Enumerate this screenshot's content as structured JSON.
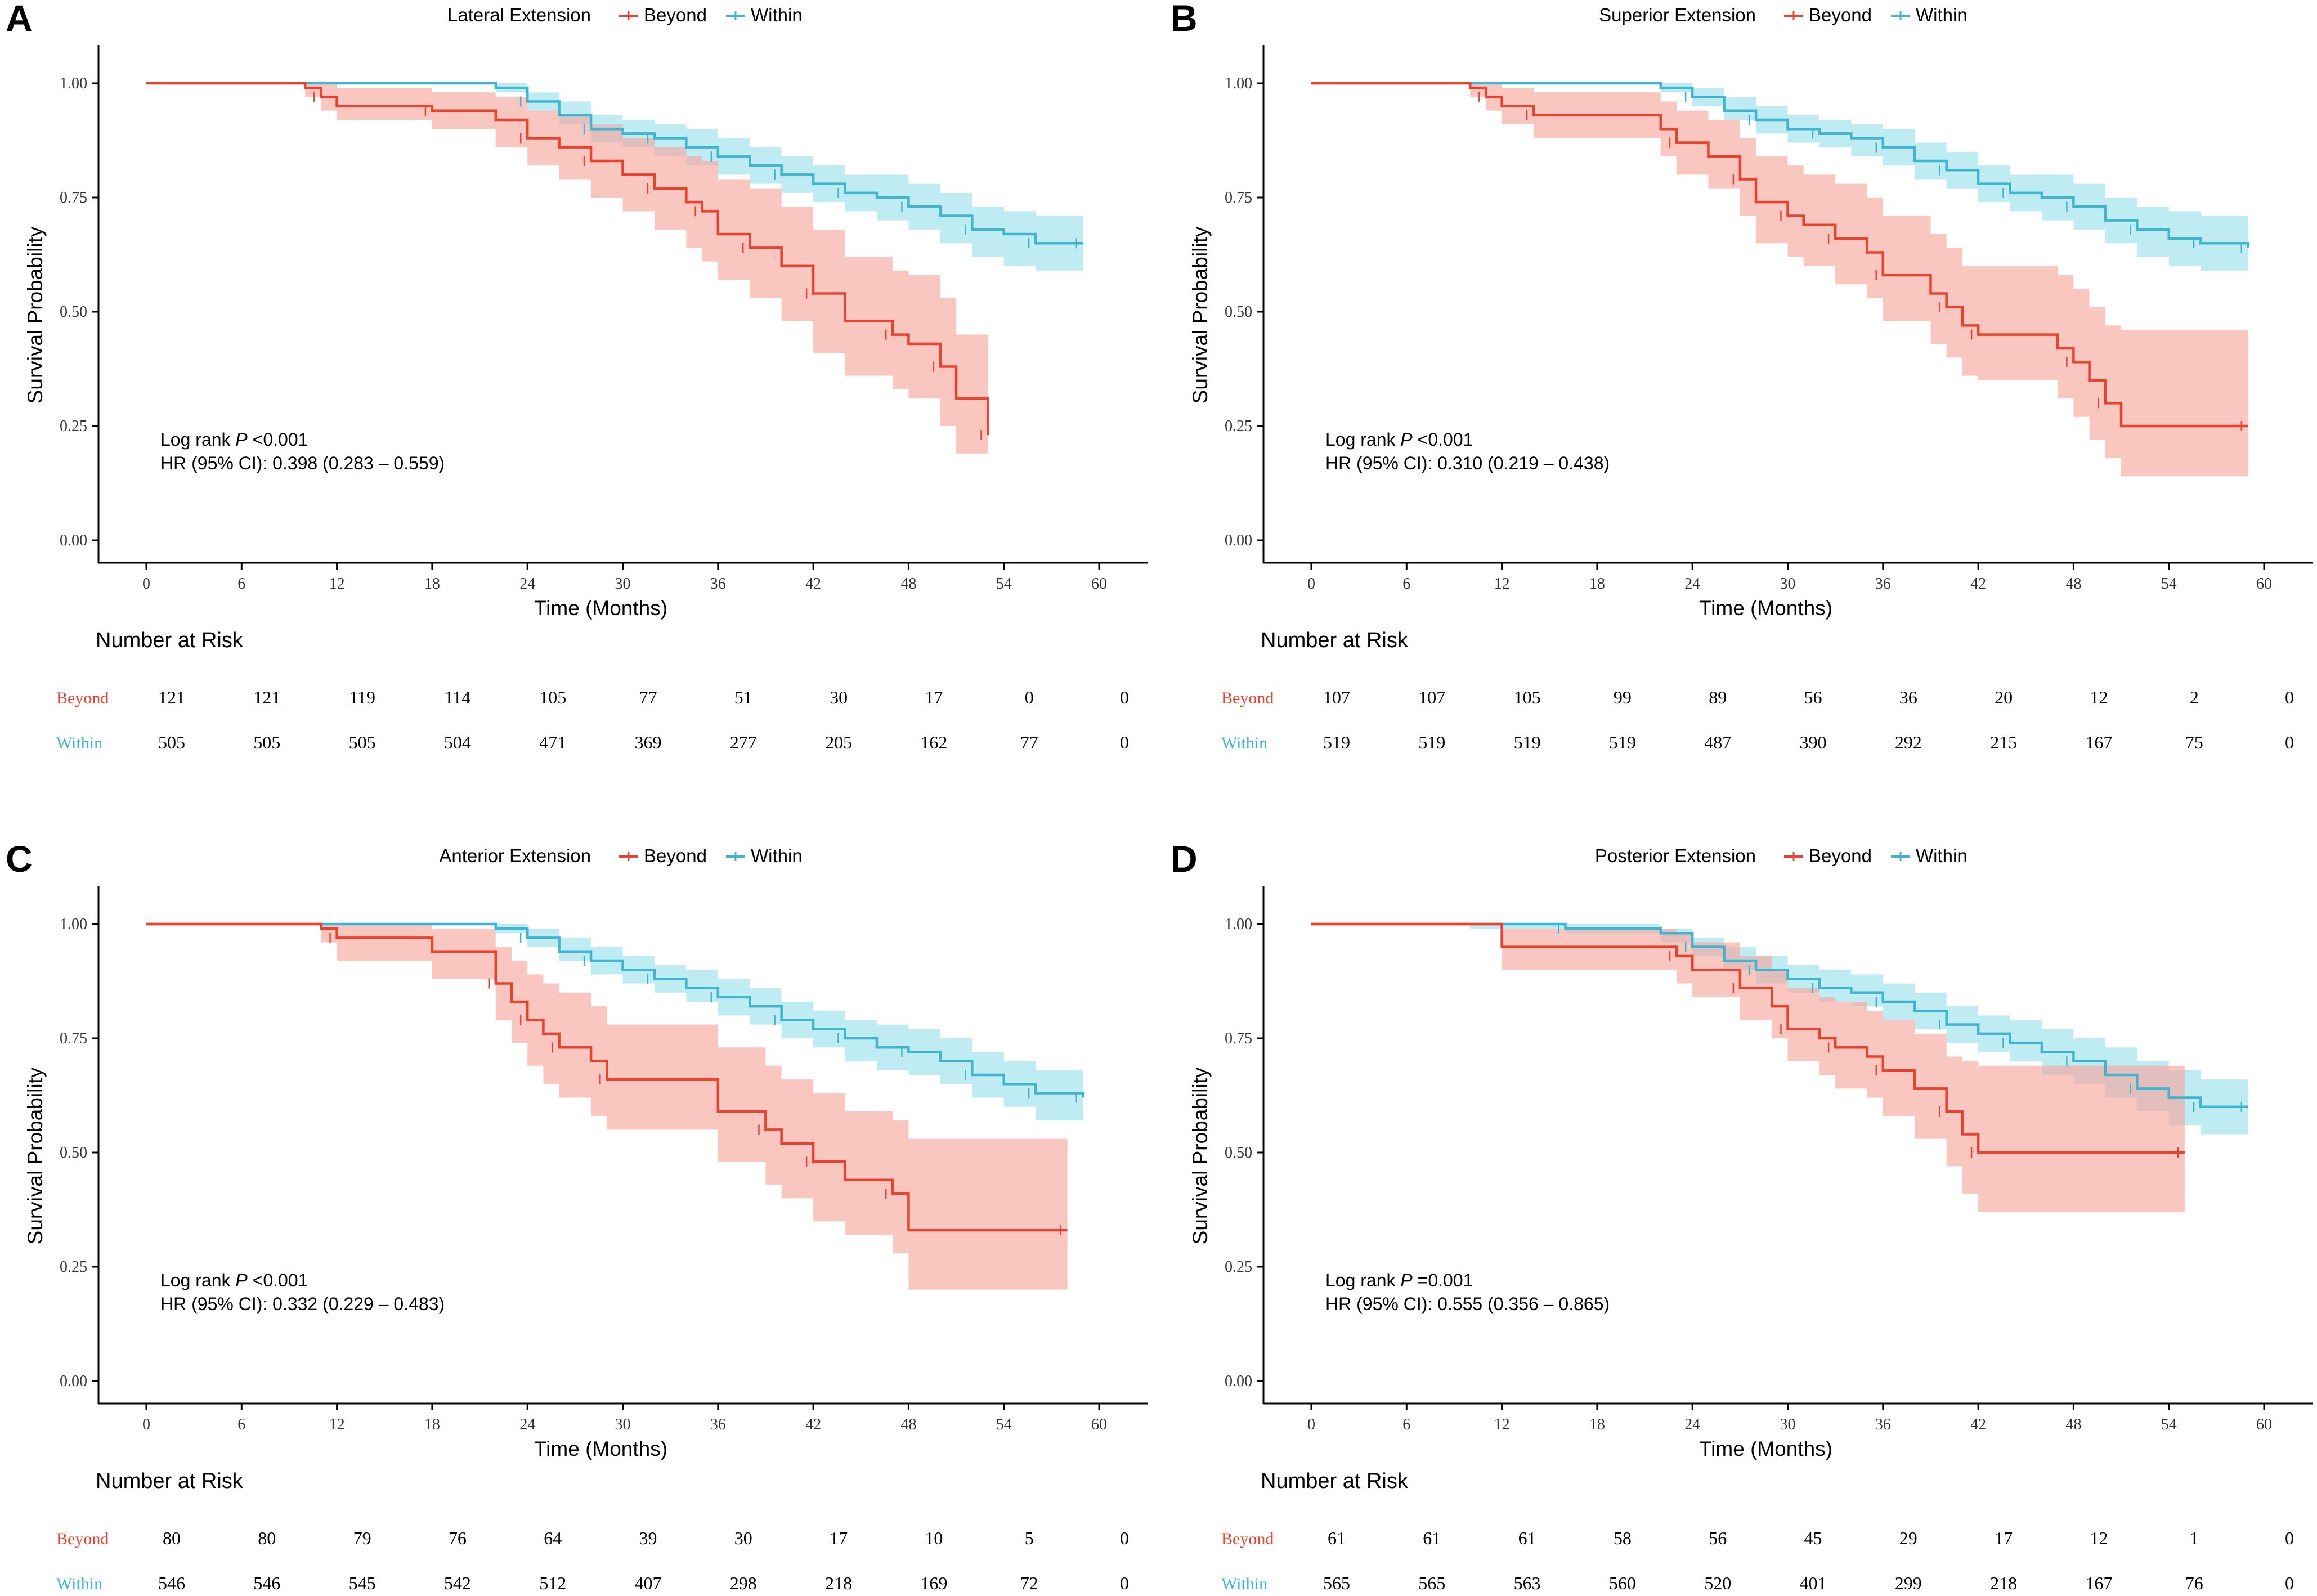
{
  "figure": {
    "colors": {
      "beyond": "#e8432f",
      "within": "#3fb5cf",
      "beyond_band": "#f7a39a",
      "within_band": "#a6e3ef",
      "axis": "#000000"
    }
  },
  "chart_data": [
    {
      "panel_label": "A",
      "type": "line",
      "subtype": "kaplan-meier",
      "title": "Lateral Extension",
      "legend": [
        "Beyond",
        "Within"
      ],
      "xlabel": "Time (Months)",
      "ylabel": "Survival Probability",
      "xlim": [
        0,
        60
      ],
      "ylim": [
        0,
        1
      ],
      "xticks": [
        "0",
        "6",
        "12",
        "18",
        "24",
        "30",
        "36",
        "42",
        "48",
        "54",
        "60"
      ],
      "yticks": [
        "0.00",
        "0.25",
        "0.50",
        "0.75",
        "1.00"
      ],
      "annotation": {
        "line1_pre": "Log rank ",
        "line1_p": "P",
        "line1_post": " <0.001",
        "line2": "HR (95% CI): 0.398 (0.283 – 0.559)"
      },
      "series": [
        {
          "name": "Beyond",
          "x": [
            0,
            10,
            11,
            12,
            18,
            22,
            24,
            26,
            28,
            30,
            32,
            34,
            35,
            36,
            38,
            40,
            42,
            44,
            47,
            48,
            50,
            51,
            53
          ],
          "y": [
            1.0,
            0.99,
            0.97,
            0.95,
            0.94,
            0.92,
            0.88,
            0.86,
            0.83,
            0.8,
            0.77,
            0.74,
            0.72,
            0.67,
            0.64,
            0.6,
            0.54,
            0.48,
            0.45,
            0.43,
            0.38,
            0.31,
            0.23
          ],
          "lower": [
            1.0,
            0.97,
            0.94,
            0.92,
            0.9,
            0.86,
            0.82,
            0.79,
            0.75,
            0.72,
            0.68,
            0.64,
            0.61,
            0.57,
            0.53,
            0.48,
            0.41,
            0.36,
            0.33,
            0.31,
            0.25,
            0.19,
            0.19
          ],
          "upper": [
            1.0,
            1.0,
            1.0,
            0.99,
            0.98,
            0.97,
            0.94,
            0.93,
            0.91,
            0.88,
            0.86,
            0.84,
            0.83,
            0.79,
            0.77,
            0.73,
            0.68,
            0.62,
            0.59,
            0.58,
            0.53,
            0.45,
            0.31
          ]
        },
        {
          "name": "Within",
          "x": [
            0,
            22,
            24,
            26,
            28,
            30,
            32,
            34,
            36,
            38,
            40,
            42,
            44,
            46,
            48,
            50,
            52,
            54,
            56,
            59
          ],
          "y": [
            1.0,
            0.99,
            0.96,
            0.93,
            0.9,
            0.89,
            0.88,
            0.86,
            0.84,
            0.82,
            0.8,
            0.78,
            0.76,
            0.75,
            0.73,
            0.71,
            0.68,
            0.67,
            0.65,
            0.65
          ],
          "lower": [
            1.0,
            0.98,
            0.94,
            0.91,
            0.87,
            0.86,
            0.84,
            0.82,
            0.8,
            0.78,
            0.76,
            0.74,
            0.72,
            0.7,
            0.68,
            0.65,
            0.62,
            0.6,
            0.59,
            0.59
          ],
          "upper": [
            1.0,
            1.0,
            0.98,
            0.96,
            0.93,
            0.92,
            0.91,
            0.9,
            0.88,
            0.86,
            0.84,
            0.82,
            0.8,
            0.8,
            0.78,
            0.76,
            0.73,
            0.72,
            0.71,
            0.71
          ]
        }
      ],
      "risk_table": {
        "title": "Number at Risk",
        "rows": [
          {
            "name": "Beyond",
            "values": [
              "121",
              "121",
              "119",
              "114",
              "105",
              "77",
              "51",
              "30",
              "17",
              "0",
              "0"
            ]
          },
          {
            "name": "Within",
            "values": [
              "505",
              "505",
              "505",
              "504",
              "471",
              "369",
              "277",
              "205",
              "162",
              "77",
              "0"
            ]
          }
        ]
      }
    },
    {
      "panel_label": "B",
      "type": "line",
      "subtype": "kaplan-meier",
      "title": "Superior Extension",
      "legend": [
        "Beyond",
        "Within"
      ],
      "xlabel": "Time (Months)",
      "ylabel": "Survival Probability",
      "xlim": [
        0,
        60
      ],
      "ylim": [
        0,
        1
      ],
      "xticks": [
        "0",
        "6",
        "12",
        "18",
        "24",
        "30",
        "36",
        "42",
        "48",
        "54",
        "60"
      ],
      "yticks": [
        "0.00",
        "0.25",
        "0.50",
        "0.75",
        "1.00"
      ],
      "annotation": {
        "line1_pre": "Log rank ",
        "line1_p": "P",
        "line1_post": " <0.001",
        "line2": "HR (95% CI): 0.310 (0.219 – 0.438)"
      },
      "series": [
        {
          "name": "Beyond",
          "x": [
            0,
            10,
            11,
            12,
            14,
            22,
            23,
            25,
            27,
            28,
            30,
            31,
            33,
            35,
            36,
            39,
            40,
            41,
            42,
            47,
            48,
            49,
            50,
            51,
            59
          ],
          "y": [
            1.0,
            0.99,
            0.97,
            0.95,
            0.93,
            0.9,
            0.87,
            0.84,
            0.79,
            0.74,
            0.71,
            0.69,
            0.66,
            0.63,
            0.58,
            0.54,
            0.51,
            0.47,
            0.45,
            0.42,
            0.39,
            0.35,
            0.3,
            0.25,
            0.25
          ],
          "lower": [
            1.0,
            0.97,
            0.94,
            0.91,
            0.88,
            0.84,
            0.8,
            0.77,
            0.71,
            0.65,
            0.62,
            0.6,
            0.56,
            0.53,
            0.48,
            0.43,
            0.4,
            0.36,
            0.35,
            0.31,
            0.27,
            0.22,
            0.18,
            0.14,
            0.14
          ],
          "upper": [
            1.0,
            1.0,
            1.0,
            0.99,
            0.98,
            0.96,
            0.94,
            0.92,
            0.88,
            0.84,
            0.82,
            0.8,
            0.78,
            0.75,
            0.71,
            0.67,
            0.64,
            0.6,
            0.6,
            0.58,
            0.55,
            0.51,
            0.47,
            0.46,
            0.46
          ]
        },
        {
          "name": "Within",
          "x": [
            0,
            22,
            24,
            26,
            28,
            30,
            32,
            34,
            36,
            38,
            40,
            42,
            44,
            46,
            48,
            50,
            52,
            54,
            56,
            59
          ],
          "y": [
            1.0,
            0.99,
            0.97,
            0.94,
            0.92,
            0.9,
            0.89,
            0.88,
            0.86,
            0.83,
            0.81,
            0.78,
            0.76,
            0.75,
            0.73,
            0.7,
            0.68,
            0.66,
            0.65,
            0.64
          ],
          "lower": [
            1.0,
            0.98,
            0.95,
            0.92,
            0.89,
            0.87,
            0.86,
            0.84,
            0.82,
            0.79,
            0.77,
            0.74,
            0.72,
            0.7,
            0.68,
            0.65,
            0.62,
            0.6,
            0.59,
            0.58
          ],
          "upper": [
            1.0,
            1.0,
            0.99,
            0.97,
            0.95,
            0.93,
            0.92,
            0.91,
            0.9,
            0.87,
            0.85,
            0.82,
            0.8,
            0.8,
            0.78,
            0.75,
            0.73,
            0.72,
            0.71,
            0.7
          ]
        }
      ],
      "risk_table": {
        "title": "Number at Risk",
        "rows": [
          {
            "name": "Beyond",
            "values": [
              "107",
              "107",
              "105",
              "99",
              "89",
              "56",
              "36",
              "20",
              "12",
              "2",
              "0"
            ]
          },
          {
            "name": "Within",
            "values": [
              "519",
              "519",
              "519",
              "519",
              "487",
              "390",
              "292",
              "215",
              "167",
              "75",
              "0"
            ]
          }
        ]
      }
    },
    {
      "panel_label": "C",
      "type": "line",
      "subtype": "kaplan-meier",
      "title": "Anterior Extension",
      "legend": [
        "Beyond",
        "Within"
      ],
      "xlabel": "Time (Months)",
      "ylabel": "Survival Probability",
      "xlim": [
        0,
        60
      ],
      "ylim": [
        0,
        1
      ],
      "xticks": [
        "0",
        "6",
        "12",
        "18",
        "24",
        "30",
        "36",
        "42",
        "48",
        "54",
        "60"
      ],
      "yticks": [
        "0.00",
        "0.25",
        "0.50",
        "0.75",
        "1.00"
      ],
      "annotation": {
        "line1_pre": "Log rank ",
        "line1_p": "P",
        "line1_post": " <0.001",
        "line2": "HR (95% CI): 0.332 (0.229 – 0.483)"
      },
      "series": [
        {
          "name": "Beyond",
          "x": [
            0,
            11,
            12,
            18,
            22,
            23,
            24,
            25,
            26,
            28,
            29,
            36,
            39,
            40,
            42,
            44,
            47,
            48,
            58
          ],
          "y": [
            1.0,
            0.99,
            0.97,
            0.94,
            0.87,
            0.83,
            0.79,
            0.76,
            0.73,
            0.7,
            0.66,
            0.59,
            0.55,
            0.52,
            0.48,
            0.44,
            0.41,
            0.33,
            0.33
          ],
          "lower": [
            1.0,
            0.96,
            0.92,
            0.88,
            0.79,
            0.74,
            0.69,
            0.65,
            0.62,
            0.58,
            0.55,
            0.48,
            0.43,
            0.4,
            0.35,
            0.32,
            0.28,
            0.2,
            0.2
          ],
          "upper": [
            1.0,
            1.0,
            1.0,
            0.99,
            0.95,
            0.92,
            0.89,
            0.87,
            0.85,
            0.82,
            0.78,
            0.73,
            0.69,
            0.66,
            0.63,
            0.59,
            0.57,
            0.53,
            0.53
          ]
        },
        {
          "name": "Within",
          "x": [
            0,
            22,
            24,
            26,
            28,
            30,
            32,
            34,
            36,
            38,
            40,
            42,
            44,
            46,
            48,
            50,
            52,
            54,
            56,
            59
          ],
          "y": [
            1.0,
            0.99,
            0.97,
            0.94,
            0.92,
            0.9,
            0.88,
            0.86,
            0.84,
            0.82,
            0.79,
            0.77,
            0.75,
            0.73,
            0.72,
            0.7,
            0.67,
            0.65,
            0.63,
            0.62
          ],
          "lower": [
            1.0,
            0.98,
            0.95,
            0.92,
            0.89,
            0.87,
            0.85,
            0.83,
            0.8,
            0.78,
            0.75,
            0.73,
            0.7,
            0.68,
            0.67,
            0.65,
            0.62,
            0.6,
            0.57,
            0.56
          ],
          "upper": [
            1.0,
            1.0,
            0.99,
            0.97,
            0.95,
            0.93,
            0.91,
            0.9,
            0.88,
            0.86,
            0.83,
            0.81,
            0.79,
            0.78,
            0.77,
            0.75,
            0.72,
            0.7,
            0.68,
            0.68
          ]
        }
      ],
      "risk_table": {
        "title": "Number at Risk",
        "rows": [
          {
            "name": "Beyond",
            "values": [
              "80",
              "80",
              "79",
              "76",
              "64",
              "39",
              "30",
              "17",
              "10",
              "5",
              "0"
            ]
          },
          {
            "name": "Within",
            "values": [
              "546",
              "546",
              "545",
              "542",
              "512",
              "407",
              "298",
              "218",
              "169",
              "72",
              "0"
            ]
          }
        ]
      }
    },
    {
      "panel_label": "D",
      "type": "line",
      "subtype": "kaplan-meier",
      "title": "Posterior Extension",
      "legend": [
        "Beyond",
        "Within"
      ],
      "xlabel": "Time (Months)",
      "ylabel": "Survival Probability",
      "xlim": [
        0,
        60
      ],
      "ylim": [
        0,
        1
      ],
      "xticks": [
        "0",
        "6",
        "12",
        "18",
        "24",
        "30",
        "36",
        "42",
        "48",
        "54",
        "60"
      ],
      "yticks": [
        "0.00",
        "0.25",
        "0.50",
        "0.75",
        "1.00"
      ],
      "annotation": {
        "line1_pre": "Log rank ",
        "line1_p": "P",
        "line1_post": " =0.001",
        "line2": "HR (95% CI): 0.555 (0.356 – 0.865)"
      },
      "series": [
        {
          "name": "Beyond",
          "x": [
            0,
            12,
            23,
            24,
            27,
            29,
            30,
            32,
            33,
            35,
            36,
            38,
            40,
            41,
            42,
            55
          ],
          "y": [
            1.0,
            0.95,
            0.93,
            0.9,
            0.86,
            0.82,
            0.77,
            0.75,
            0.73,
            0.71,
            0.68,
            0.64,
            0.59,
            0.54,
            0.5,
            0.5
          ],
          "lower": [
            1.0,
            0.9,
            0.87,
            0.84,
            0.79,
            0.75,
            0.7,
            0.67,
            0.64,
            0.62,
            0.58,
            0.53,
            0.47,
            0.41,
            0.37,
            0.37
          ],
          "upper": [
            1.0,
            0.99,
            0.98,
            0.96,
            0.93,
            0.9,
            0.86,
            0.84,
            0.83,
            0.81,
            0.79,
            0.76,
            0.71,
            0.7,
            0.69,
            0.69
          ]
        },
        {
          "name": "Within",
          "x": [
            0,
            10,
            16,
            22,
            24,
            26,
            28,
            30,
            32,
            34,
            36,
            38,
            40,
            42,
            44,
            46,
            48,
            50,
            52,
            54,
            56,
            59
          ],
          "y": [
            1.0,
            1.0,
            0.99,
            0.98,
            0.95,
            0.92,
            0.9,
            0.88,
            0.86,
            0.85,
            0.83,
            0.81,
            0.78,
            0.76,
            0.74,
            0.72,
            0.7,
            0.67,
            0.64,
            0.62,
            0.6,
            0.6
          ],
          "lower": [
            1.0,
            0.99,
            0.98,
            0.96,
            0.93,
            0.9,
            0.87,
            0.85,
            0.83,
            0.82,
            0.79,
            0.77,
            0.74,
            0.72,
            0.7,
            0.67,
            0.65,
            0.62,
            0.59,
            0.56,
            0.54,
            0.54
          ],
          "upper": [
            1.0,
            1.0,
            1.0,
            0.99,
            0.97,
            0.95,
            0.93,
            0.91,
            0.9,
            0.89,
            0.87,
            0.85,
            0.82,
            0.8,
            0.79,
            0.77,
            0.75,
            0.73,
            0.7,
            0.68,
            0.66,
            0.66
          ]
        }
      ],
      "risk_table": {
        "title": "Number at Risk",
        "rows": [
          {
            "name": "Beyond",
            "values": [
              "61",
              "61",
              "61",
              "58",
              "56",
              "45",
              "29",
              "17",
              "12",
              "1",
              "0"
            ]
          },
          {
            "name": "Within",
            "values": [
              "565",
              "565",
              "563",
              "560",
              "520",
              "401",
              "299",
              "218",
              "167",
              "76",
              "0"
            ]
          }
        ]
      }
    }
  ]
}
